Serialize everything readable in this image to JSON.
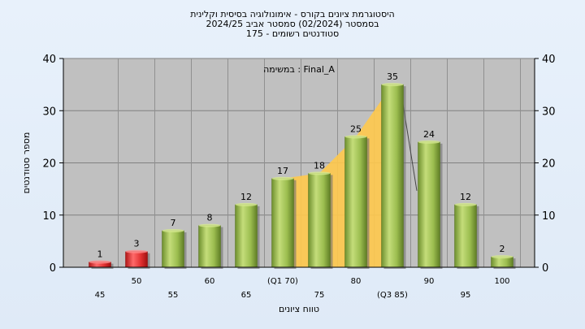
{
  "title_lines": [
    "היסטוגרמת ציונים בקורס - אימונולוגיה בסיסית וקלינית",
    "בסמסטר  (02/2024)  סמסטר אביב 2024/25",
    "סטודנטים רשומים - 175"
  ],
  "chart_data": {
    "type": "bar",
    "title": "היסטוגרמת ציונים בקורס - אימונולוגיה בסיסית וקלינית",
    "annotation": "במשימה : Final_A",
    "xlabel": "טווח ציונים",
    "ylabel": "מספר סטודנטים",
    "ylim": [
      0,
      40
    ],
    "yticks": [
      0,
      10,
      20,
      30,
      40
    ],
    "categories": [
      "45",
      "50",
      "55",
      "60",
      "65",
      "(Q1 70)",
      "75",
      "80",
      "(Q3 85)",
      "90",
      "95",
      "100"
    ],
    "values": [
      1,
      3,
      7,
      8,
      12,
      17,
      18,
      25,
      35,
      24,
      12,
      2
    ],
    "bar_colors": [
      "red",
      "red",
      "green",
      "green",
      "green",
      "green",
      "green",
      "green",
      "green",
      "green",
      "green",
      "green"
    ],
    "grid": true,
    "highlight_area": {
      "description": "interquartile range",
      "from": "(Q1 70)",
      "to": "(Q3 85)"
    },
    "colors": {
      "plot_bg": "#c0c0c0",
      "bar_green": "#8fb04a",
      "bar_red": "#e03030",
      "area_fill": "#ffc94d",
      "page_bg": "#e3edf8"
    }
  }
}
